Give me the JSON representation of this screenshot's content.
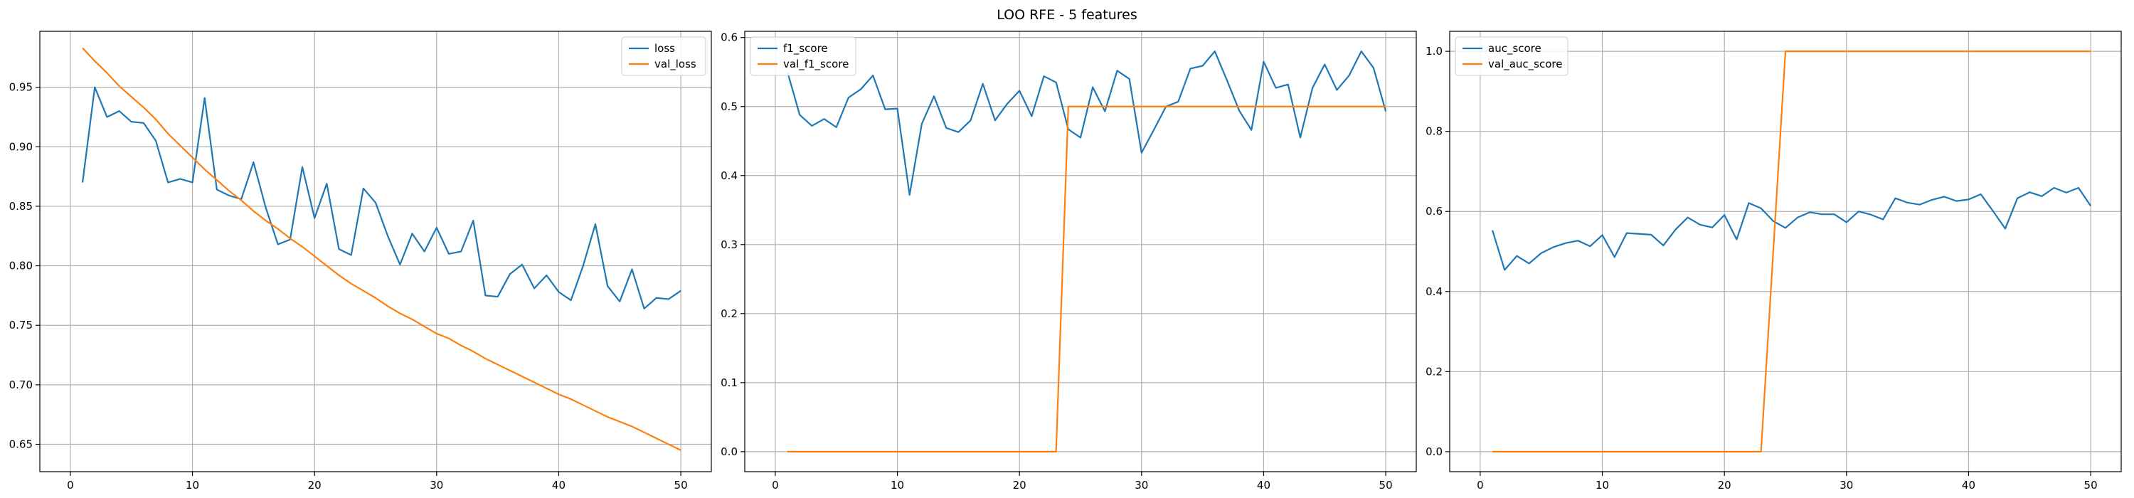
{
  "figure": {
    "title": "LOO RFE - 5 features"
  },
  "chart_data": [
    {
      "type": "line",
      "xlim": [
        -2.5,
        52.5
      ],
      "ylim": [
        0.627,
        0.997
      ],
      "xticks": [
        0,
        10,
        20,
        30,
        40,
        50
      ],
      "yticks": [
        0.65,
        0.7,
        0.75,
        0.8,
        0.85,
        0.9,
        0.95
      ],
      "ytick_labels": [
        "0.65",
        "0.70",
        "0.75",
        "0.80",
        "0.85",
        "0.90",
        "0.95"
      ],
      "grid": true,
      "legend_position": "upper right",
      "x": [
        1,
        2,
        3,
        4,
        5,
        6,
        7,
        8,
        9,
        10,
        11,
        12,
        13,
        14,
        15,
        16,
        17,
        18,
        19,
        20,
        21,
        22,
        23,
        24,
        25,
        26,
        27,
        28,
        29,
        30,
        31,
        32,
        33,
        34,
        35,
        36,
        37,
        38,
        39,
        40,
        41,
        42,
        43,
        44,
        45,
        46,
        47,
        48,
        49,
        50
      ],
      "series": [
        {
          "name": "loss",
          "color": "#1f77b4",
          "values": [
            0.87,
            0.95,
            0.925,
            0.93,
            0.921,
            0.92,
            0.905,
            0.87,
            0.873,
            0.87,
            0.941,
            0.864,
            0.859,
            0.856,
            0.887,
            0.849,
            0.818,
            0.822,
            0.883,
            0.84,
            0.869,
            0.814,
            0.809,
            0.865,
            0.853,
            0.825,
            0.801,
            0.827,
            0.812,
            0.832,
            0.81,
            0.812,
            0.838,
            0.775,
            0.774,
            0.793,
            0.801,
            0.781,
            0.792,
            0.778,
            0.771,
            0.8,
            0.835,
            0.783,
            0.77,
            0.797,
            0.764,
            0.773,
            0.772,
            0.779
          ]
        },
        {
          "name": "val_loss",
          "color": "#ff7f0e",
          "values": [
            0.983,
            0.972,
            0.962,
            0.951,
            0.942,
            0.933,
            0.923,
            0.911,
            0.901,
            0.891,
            0.881,
            0.872,
            0.863,
            0.855,
            0.846,
            0.838,
            0.831,
            0.823,
            0.816,
            0.808,
            0.8,
            0.792,
            0.785,
            0.779,
            0.773,
            0.766,
            0.76,
            0.755,
            0.749,
            0.743,
            0.739,
            0.733,
            0.728,
            0.722,
            0.717,
            0.712,
            0.707,
            0.702,
            0.697,
            0.692,
            0.688,
            0.683,
            0.678,
            0.673,
            0.669,
            0.665,
            0.66,
            0.655,
            0.65,
            0.645
          ]
        }
      ]
    },
    {
      "type": "line",
      "xlim": [
        -2.5,
        52.5
      ],
      "ylim": [
        -0.029,
        0.609
      ],
      "xticks": [
        0,
        10,
        20,
        30,
        40,
        50
      ],
      "yticks": [
        0.0,
        0.1,
        0.2,
        0.3,
        0.4,
        0.5,
        0.6
      ],
      "ytick_labels": [
        "0.0",
        "0.1",
        "0.2",
        "0.3",
        "0.4",
        "0.5",
        "0.6"
      ],
      "grid": true,
      "legend_position": "upper left",
      "x": [
        1,
        2,
        3,
        4,
        5,
        6,
        7,
        8,
        9,
        10,
        11,
        12,
        13,
        14,
        15,
        16,
        17,
        18,
        19,
        20,
        21,
        22,
        23,
        24,
        25,
        26,
        27,
        28,
        29,
        30,
        31,
        32,
        33,
        34,
        35,
        36,
        37,
        38,
        39,
        40,
        41,
        42,
        43,
        44,
        45,
        46,
        47,
        48,
        49,
        50
      ],
      "series": [
        {
          "name": "f1_score",
          "color": "#1f77b4",
          "values": [
            0.55,
            0.488,
            0.472,
            0.482,
            0.47,
            0.513,
            0.525,
            0.545,
            0.496,
            0.497,
            0.372,
            0.475,
            0.515,
            0.469,
            0.463,
            0.48,
            0.533,
            0.48,
            0.504,
            0.523,
            0.486,
            0.544,
            0.535,
            0.467,
            0.455,
            0.528,
            0.493,
            0.552,
            0.54,
            0.433,
            0.466,
            0.5,
            0.507,
            0.555,
            0.559,
            0.58,
            0.538,
            0.494,
            0.466,
            0.565,
            0.527,
            0.532,
            0.455,
            0.527,
            0.561,
            0.524,
            0.545,
            0.58,
            0.556,
            0.493
          ]
        },
        {
          "name": "val_f1_score",
          "color": "#ff7f0e",
          "values": [
            0,
            0,
            0,
            0,
            0,
            0,
            0,
            0,
            0,
            0,
            0,
            0,
            0,
            0,
            0,
            0,
            0,
            0,
            0,
            0,
            0,
            0,
            0,
            0.5,
            0.5,
            0.5,
            0.5,
            0.5,
            0.5,
            0.5,
            0.5,
            0.5,
            0.5,
            0.5,
            0.5,
            0.5,
            0.5,
            0.5,
            0.5,
            0.5,
            0.5,
            0.5,
            0.5,
            0.5,
            0.5,
            0.5,
            0.5,
            0.5,
            0.5,
            0.5
          ]
        }
      ]
    },
    {
      "type": "line",
      "xlim": [
        -2.5,
        52.5
      ],
      "ylim": [
        -0.05,
        1.05
      ],
      "xticks": [
        0,
        10,
        20,
        30,
        40,
        50
      ],
      "yticks": [
        0.0,
        0.2,
        0.4,
        0.6,
        0.8,
        1.0
      ],
      "ytick_labels": [
        "0.0",
        "0.2",
        "0.4",
        "0.6",
        "0.8",
        "1.0"
      ],
      "grid": true,
      "legend_position": "upper left",
      "x": [
        1,
        2,
        3,
        4,
        5,
        6,
        7,
        8,
        9,
        10,
        11,
        12,
        13,
        14,
        15,
        16,
        17,
        18,
        19,
        20,
        21,
        22,
        23,
        24,
        25,
        26,
        27,
        28,
        29,
        30,
        31,
        32,
        33,
        34,
        35,
        36,
        37,
        38,
        39,
        40,
        41,
        42,
        43,
        44,
        45,
        46,
        47,
        48,
        49,
        50
      ],
      "series": [
        {
          "name": "auc_score",
          "color": "#1f77b4",
          "values": [
            0.553,
            0.454,
            0.489,
            0.47,
            0.496,
            0.511,
            0.521,
            0.527,
            0.513,
            0.541,
            0.486,
            0.546,
            0.544,
            0.542,
            0.515,
            0.555,
            0.585,
            0.567,
            0.56,
            0.591,
            0.53,
            0.621,
            0.608,
            0.576,
            0.559,
            0.585,
            0.598,
            0.593,
            0.593,
            0.573,
            0.6,
            0.592,
            0.58,
            0.633,
            0.622,
            0.617,
            0.629,
            0.637,
            0.626,
            0.63,
            0.643,
            0.601,
            0.557,
            0.633,
            0.648,
            0.638,
            0.659,
            0.647,
            0.659,
            0.614
          ]
        },
        {
          "name": "val_auc_score",
          "color": "#ff7f0e",
          "values": [
            0,
            0,
            0,
            0,
            0,
            0,
            0,
            0,
            0,
            0,
            0,
            0,
            0,
            0,
            0,
            0,
            0,
            0,
            0,
            0,
            0,
            0,
            0,
            0.5,
            1,
            1,
            1,
            1,
            1,
            1,
            1,
            1,
            1,
            1,
            1,
            1,
            1,
            1,
            1,
            1,
            1,
            1,
            1,
            1,
            1,
            1,
            1,
            1,
            1,
            1
          ]
        }
      ]
    }
  ]
}
